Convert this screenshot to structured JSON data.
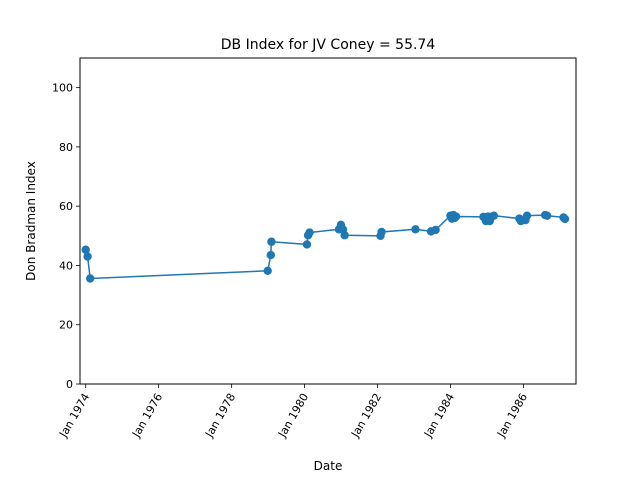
{
  "chart_data": {
    "type": "line",
    "title": "DB Index for JV Coney = 55.74",
    "xlabel": "Date",
    "ylabel": "Don Bradman Index",
    "xlim": [
      "1973-11-05",
      "1987-06-10"
    ],
    "ylim": [
      0,
      110
    ],
    "x_ticks": [
      "1974-01-01",
      "1976-01-01",
      "1978-01-01",
      "1980-01-01",
      "1982-01-01",
      "1984-01-01",
      "1986-01-01"
    ],
    "x_tick_labels": [
      "Jan 1974",
      "Jan 1976",
      "Jan 1978",
      "Jan 1980",
      "Jan 1982",
      "Jan 1984",
      "Jan 1986"
    ],
    "y_ticks": [
      0,
      20,
      40,
      60,
      80,
      100
    ],
    "y_tick_labels": [
      "0",
      "20",
      "40",
      "60",
      "80",
      "100"
    ],
    "grid": false,
    "color": "#1f77b4",
    "series": [
      {
        "x": [
          "1974-01-01",
          "1974-01-20",
          "1974-02-15",
          "1978-12-28",
          "1979-01-28",
          "1979-02-03",
          "1980-01-25",
          "1980-02-05",
          "1980-02-20",
          "1980-12-10",
          "1980-12-30",
          "1981-01-20",
          "1981-02-05",
          "1982-01-30",
          "1982-02-10",
          "1983-01-15",
          "1983-06-20",
          "1983-08-05",
          "1983-12-31",
          "1984-01-15",
          "1984-01-30",
          "1984-02-10",
          "1984-02-25",
          "1984-11-25",
          "1984-12-20",
          "1985-01-10",
          "1985-01-28",
          "1985-02-20",
          "1985-03-10",
          "1985-11-20",
          "1985-12-05",
          "1986-01-20",
          "1986-02-05",
          "1986-08-05",
          "1986-08-25",
          "1987-02-05",
          "1987-02-20"
        ],
        "y": [
          45.3,
          43.0,
          35.6,
          38.2,
          43.5,
          48.0,
          47.1,
          50.2,
          51.1,
          52.2,
          53.7,
          52.1,
          50.2,
          50.0,
          51.3,
          52.2,
          51.5,
          52.0,
          56.8,
          55.8,
          57.0,
          56.0,
          56.5,
          56.4,
          55.0,
          56.5,
          55.0,
          56.5,
          56.8,
          55.8,
          55.0,
          55.3,
          56.8,
          57.0,
          56.8,
          56.2,
          55.7
        ]
      }
    ]
  }
}
